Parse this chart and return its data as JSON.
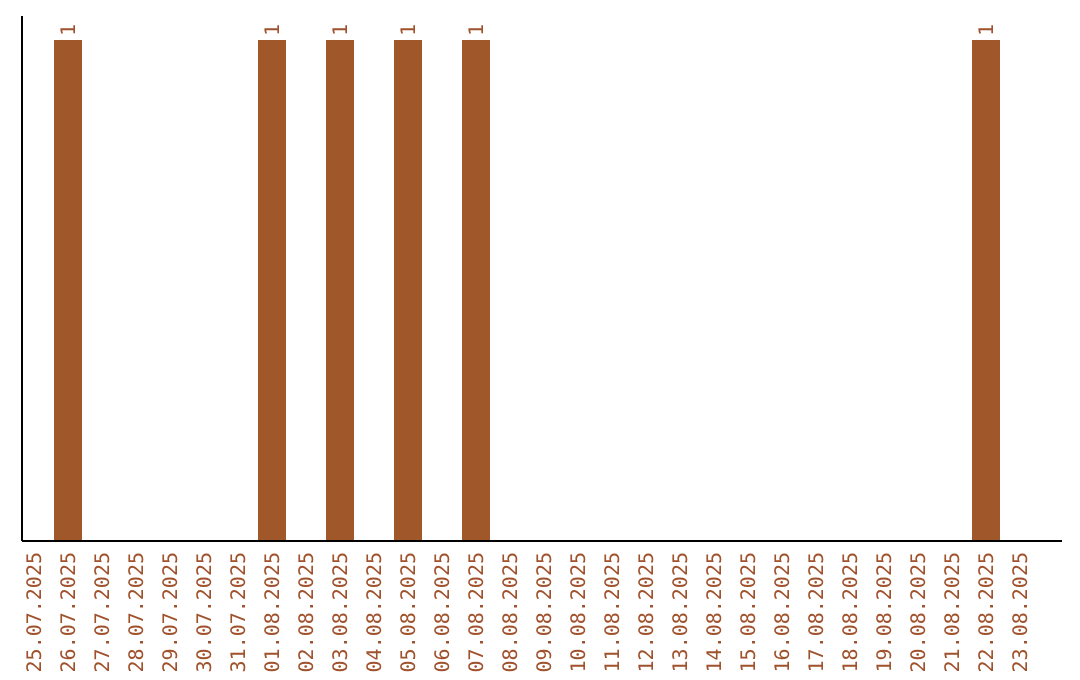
{
  "chart_data": {
    "type": "bar",
    "categories": [
      "25.07.2025",
      "26.07.2025",
      "27.07.2025",
      "28.07.2025",
      "29.07.2025",
      "30.07.2025",
      "31.07.2025",
      "01.08.2025",
      "02.08.2025",
      "03.08.2025",
      "04.08.2025",
      "05.08.2025",
      "06.08.2025",
      "07.08.2025",
      "08.08.2025",
      "09.08.2025",
      "10.08.2025",
      "11.08.2025",
      "12.08.2025",
      "13.08.2025",
      "14.08.2025",
      "15.08.2025",
      "16.08.2025",
      "17.08.2025",
      "18.08.2025",
      "19.08.2025",
      "20.08.2025",
      "21.08.2025",
      "22.08.2025",
      "23.08.2025"
    ],
    "values": [
      0,
      1,
      0,
      0,
      0,
      0,
      0,
      1,
      0,
      1,
      0,
      1,
      0,
      1,
      0,
      0,
      0,
      0,
      0,
      0,
      0,
      0,
      0,
      0,
      0,
      0,
      0,
      0,
      1,
      0
    ],
    "value_labels": [
      null,
      "1",
      null,
      null,
      null,
      null,
      null,
      "1",
      null,
      "1",
      null,
      "1",
      null,
      "1",
      null,
      null,
      null,
      null,
      null,
      null,
      null,
      null,
      null,
      null,
      null,
      null,
      null,
      null,
      "1",
      null
    ],
    "color": "#a0582a",
    "grid": false
  }
}
